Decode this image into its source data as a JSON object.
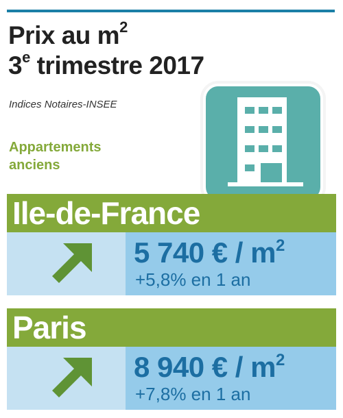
{
  "header": {
    "title_line1": "Prix au m",
    "title_line1_sup": "2",
    "title_line2_num": "3",
    "title_line2_sup": "e",
    "title_line2_rest": " trimestre 2017",
    "source": "Indices Notaires-INSEE",
    "category_line1": "Appartements",
    "category_line2": "anciens"
  },
  "icon": {
    "name": "apartment-building-icon",
    "color": "#5aafaa"
  },
  "regions": [
    {
      "name": "Ile-de-France",
      "price": "5 740 € / m",
      "price_sup": "2",
      "change": "+5,8% en 1 an",
      "trend_icon": "arrow-up-right-icon"
    },
    {
      "name": "Paris",
      "price": "8 940 € / m",
      "price_sup": "2",
      "change": "+7,8% en 1 an",
      "trend_icon": "arrow-up-right-icon"
    }
  ],
  "colors": {
    "accent_green": "#84a93a",
    "price_blue": "#1c6ea2",
    "row_light": "#c5e1f2",
    "row_medium": "#95cbea",
    "rule_blue": "#1b7fa6",
    "arrow_green": "#5f9335"
  }
}
